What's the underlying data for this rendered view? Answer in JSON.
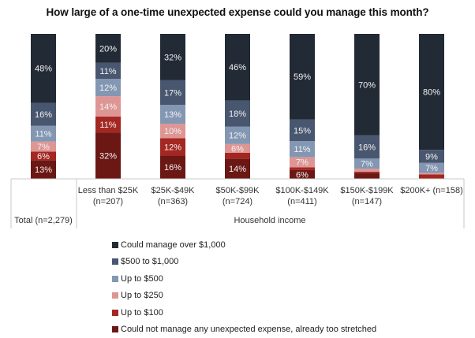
{
  "chart_data": {
    "type": "bar",
    "stacked": true,
    "percent_stacked": true,
    "title": "How large of a one-time unexpected expense could you manage this month?",
    "categories": [
      "Total (n=2,279)",
      "Less than $25K (n=207)",
      "$25K-$49K (n=363)",
      "$50K-$99K (n=724)",
      "$100K-$149K (n=411)",
      "$150K-$199K (n=147)",
      "$200K+ (n=158)"
    ],
    "category_lines": [
      [
        "Total (n=2,279)"
      ],
      [
        "Less than $25K",
        "(n=207)"
      ],
      [
        "$25K-$49K",
        "(n=363)"
      ],
      [
        "$50K-$99K",
        "(n=724)"
      ],
      [
        "$100K-$149K",
        "(n=411)"
      ],
      [
        "$150K-$199K",
        "(n=147)"
      ],
      [
        "$200K+ (n=158)"
      ]
    ],
    "group_label": "Household income",
    "xlabel": "",
    "ylabel": "",
    "ylim": [
      0,
      100
    ],
    "grid": false,
    "legend_position": "bottom",
    "series": [
      {
        "name": "Could not manage any unexpected expense, already too stretched",
        "color": "#6b1714",
        "values": [
          13,
          32,
          16,
          14,
          6,
          4,
          0
        ],
        "labels_shown": [
          true,
          true,
          true,
          true,
          true,
          false,
          false
        ]
      },
      {
        "name": "Up to $100",
        "color": "#a42722",
        "values": [
          6,
          11,
          12,
          4,
          2,
          1,
          3
        ],
        "labels_shown": [
          true,
          true,
          true,
          false,
          false,
          false,
          false
        ]
      },
      {
        "name": "Up to $250",
        "color": "#de9694",
        "values": [
          7,
          14,
          10,
          6,
          7,
          2,
          1
        ],
        "labels_shown": [
          true,
          true,
          true,
          true,
          true,
          false,
          false
        ]
      },
      {
        "name": "Up to $500",
        "color": "#8397b3",
        "values": [
          11,
          12,
          13,
          12,
          11,
          7,
          7
        ],
        "labels_shown": [
          true,
          true,
          true,
          true,
          true,
          true,
          true
        ]
      },
      {
        "name": "$500 to $1,000",
        "color": "#48566f",
        "values": [
          16,
          11,
          17,
          18,
          15,
          16,
          9
        ],
        "labels_shown": [
          true,
          true,
          true,
          true,
          true,
          true,
          true
        ]
      },
      {
        "name": "Could manage over $1,000",
        "color": "#222a36",
        "values": [
          48,
          20,
          32,
          46,
          59,
          70,
          80
        ],
        "labels_shown": [
          true,
          true,
          true,
          true,
          true,
          true,
          true
        ]
      }
    ],
    "legend_order": [
      "Could manage over $1,000",
      "$500 to $1,000",
      "Up to $500",
      "Up to $250",
      "Up to $100",
      "Could not manage any unexpected expense, already too stretched"
    ]
  }
}
